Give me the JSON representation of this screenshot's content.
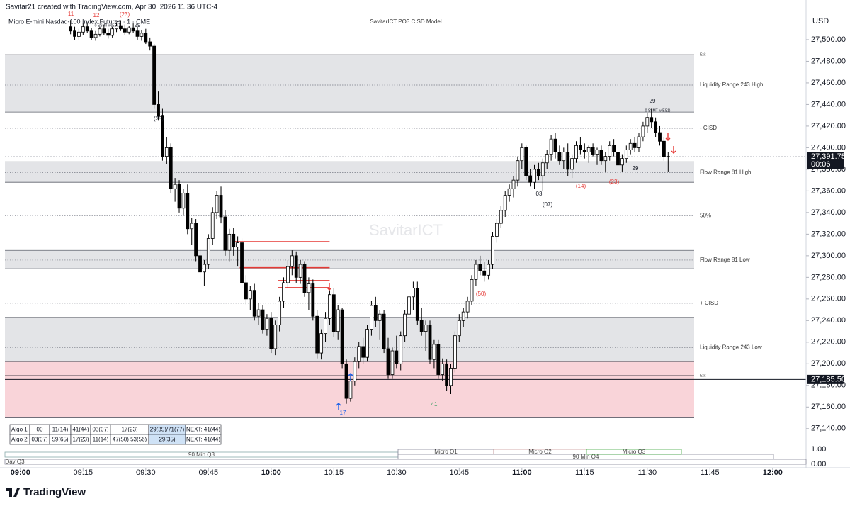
{
  "header": {
    "credit": "Savitar21 created with TradingView.com, Apr 30, 2026 11:36 UTC-4",
    "symbol": "Micro E-mini Nasdaq-100 Index Futures · 1 · CME",
    "indicator": "SavitarICT PO3 CISD Model",
    "currency": "USD"
  },
  "watermark": "SavitarICT",
  "footer": {
    "logo": "TradingView"
  },
  "chart_data": {
    "type": "candlestick",
    "up_color": "#ffffff",
    "down_color": "#000000",
    "xlim": [
      -3.7,
      188
    ],
    "ylim": [
      27133.3,
      27536.7
    ],
    "xticks": [
      {
        "value": 0,
        "label": "09:00"
      },
      {
        "value": 15,
        "label": "09:15"
      },
      {
        "value": 30,
        "label": "09:30"
      },
      {
        "value": 45,
        "label": "09:45"
      },
      {
        "value": 60,
        "label": "10:00"
      },
      {
        "value": 75,
        "label": "10:15"
      },
      {
        "value": 90,
        "label": "10:30"
      },
      {
        "value": 105,
        "label": "10:45"
      },
      {
        "value": 120,
        "label": "11:00"
      },
      {
        "value": 135,
        "label": "11:15"
      },
      {
        "value": 150,
        "label": "11:30"
      },
      {
        "value": 165,
        "label": "11:45"
      },
      {
        "value": 180,
        "label": "12:00"
      }
    ],
    "yticks": [
      {
        "value": 27140,
        "label": "27,140.00"
      },
      {
        "value": 27160,
        "label": "27,160.00"
      },
      {
        "value": 27180,
        "label": "27,180.00"
      },
      {
        "value": 27200,
        "label": "27,200.00"
      },
      {
        "value": 27220,
        "label": "27,220.00"
      },
      {
        "value": 27240,
        "label": "27,240.00"
      },
      {
        "value": 27260,
        "label": "27,260.00"
      },
      {
        "value": 27280,
        "label": "27,280.00"
      },
      {
        "value": 27300,
        "label": "27,300.00"
      },
      {
        "value": 27320,
        "label": "27,320.00"
      },
      {
        "value": 27340,
        "label": "27,340.00"
      },
      {
        "value": 27360,
        "label": "27,360.00"
      },
      {
        "value": 27380,
        "label": "27,380.00"
      },
      {
        "value": 27400,
        "label": "27,400.00"
      },
      {
        "value": 27420,
        "label": "27,420.00"
      },
      {
        "value": 27440,
        "label": "27,440.00"
      },
      {
        "value": 27460,
        "label": "27,460.00"
      },
      {
        "value": 27480,
        "label": "27,480.00"
      },
      {
        "value": 27500,
        "label": "27,500.00"
      }
    ],
    "x": [
      12,
      13,
      14,
      15,
      16,
      17,
      18,
      19,
      20,
      21,
      22,
      23,
      24,
      25,
      26,
      27,
      28,
      29,
      30,
      31,
      32,
      33,
      34,
      35,
      36,
      37,
      38,
      39,
      40,
      41,
      42,
      43,
      44,
      45,
      46,
      47,
      48,
      49,
      50,
      51,
      52,
      53,
      54,
      55,
      56,
      57,
      58,
      59,
      60,
      61,
      62,
      63,
      64,
      65,
      66,
      67,
      68,
      69,
      70,
      71,
      72,
      73,
      74,
      75,
      76,
      77,
      78,
      79,
      80,
      81,
      82,
      83,
      84,
      85,
      86,
      87,
      88,
      89,
      90,
      91,
      92,
      93,
      94,
      95,
      96,
      97,
      98,
      99,
      100,
      101,
      102,
      103,
      104,
      105,
      106,
      107,
      108,
      109,
      110,
      111,
      112,
      113,
      114,
      115,
      116,
      117,
      118,
      119,
      120,
      121,
      122,
      123,
      124,
      125,
      126,
      127,
      128,
      129,
      130,
      131,
      132,
      133,
      134,
      135,
      136,
      137,
      138,
      139,
      140,
      141,
      142,
      143,
      144,
      145,
      146,
      147,
      148,
      149,
      150,
      151,
      152,
      153,
      154,
      155
    ],
    "candles": [
      [
        27512,
        27518,
        27505,
        27508
      ],
      [
        27508,
        27512,
        27500,
        27503
      ],
      [
        27503,
        27510,
        27500,
        27507
      ],
      [
        27507,
        27515,
        27504,
        27512
      ],
      [
        27512,
        27516,
        27506,
        27508
      ],
      [
        27508,
        27511,
        27500,
        27502
      ],
      [
        27502,
        27508,
        27499,
        27505
      ],
      [
        27505,
        27512,
        27503,
        27510
      ],
      [
        27510,
        27514,
        27504,
        27506
      ],
      [
        27506,
        27510,
        27501,
        27504
      ],
      [
        27504,
        27512,
        27502,
        27510
      ],
      [
        27510,
        27516,
        27507,
        27513
      ],
      [
        27513,
        27518,
        27508,
        27510
      ],
      [
        27510,
        27514,
        27504,
        27507
      ],
      [
        27507,
        27513,
        27505,
        27511
      ],
      [
        27511,
        27515,
        27506,
        27508
      ],
      [
        27508,
        27512,
        27500,
        27503
      ],
      [
        27503,
        27509,
        27499,
        27506
      ],
      [
        27506,
        27510,
        27496,
        27498
      ],
      [
        27498,
        27502,
        27490,
        27494
      ],
      [
        27494,
        27496,
        27436,
        27440
      ],
      [
        27440,
        27452,
        27425,
        27430
      ],
      [
        27430,
        27436,
        27388,
        27392
      ],
      [
        27392,
        27410,
        27385,
        27400
      ],
      [
        27400,
        27404,
        27358,
        27362
      ],
      [
        27362,
        27372,
        27350,
        27366
      ],
      [
        27366,
        27370,
        27340,
        27344
      ],
      [
        27344,
        27362,
        27338,
        27358
      ],
      [
        27358,
        27366,
        27320,
        27325
      ],
      [
        27325,
        27335,
        27310,
        27330
      ],
      [
        27330,
        27334,
        27295,
        27300
      ],
      [
        27300,
        27306,
        27278,
        27285
      ],
      [
        27285,
        27296,
        27272,
        27292
      ],
      [
        27292,
        27320,
        27288,
        27316
      ],
      [
        27316,
        27345,
        27310,
        27340
      ],
      [
        27340,
        27360,
        27334,
        27356
      ],
      [
        27356,
        27364,
        27330,
        27336
      ],
      [
        27336,
        27342,
        27300,
        27305
      ],
      [
        27305,
        27325,
        27295,
        27320
      ],
      [
        27320,
        27326,
        27300,
        27308
      ],
      [
        27308,
        27318,
        27290,
        27312
      ],
      [
        27312,
        27316,
        27270,
        27275
      ],
      [
        27275,
        27282,
        27255,
        27260
      ],
      [
        27260,
        27272,
        27250,
        27268
      ],
      [
        27268,
        27274,
        27240,
        27244
      ],
      [
        27244,
        27256,
        27236,
        27250
      ],
      [
        27250,
        27254,
        27228,
        27232
      ],
      [
        27232,
        27246,
        27226,
        27242
      ],
      [
        27242,
        27248,
        27210,
        27214
      ],
      [
        27214,
        27240,
        27208,
        27236
      ],
      [
        27236,
        27262,
        27230,
        27258
      ],
      [
        27258,
        27280,
        27252,
        27275
      ],
      [
        27275,
        27296,
        27270,
        27290
      ],
      [
        27290,
        27305,
        27282,
        27300
      ],
      [
        27300,
        27304,
        27275,
        27280
      ],
      [
        27280,
        27296,
        27274,
        27292
      ],
      [
        27292,
        27295,
        27262,
        27266
      ],
      [
        27266,
        27280,
        27250,
        27274
      ],
      [
        27274,
        27278,
        27240,
        27244
      ],
      [
        27244,
        27250,
        27205,
        27210
      ],
      [
        27210,
        27232,
        27204,
        27228
      ],
      [
        27228,
        27248,
        27220,
        27242
      ],
      [
        27242,
        27268,
        27236,
        27264
      ],
      [
        27264,
        27270,
        27225,
        27230
      ],
      [
        27230,
        27254,
        27222,
        27250
      ],
      [
        27250,
        27252,
        27196,
        27200
      ],
      [
        27200,
        27204,
        27163,
        27168
      ],
      [
        27168,
        27188,
        27165,
        27184
      ],
      [
        27184,
        27206,
        27180,
        27202
      ],
      [
        27202,
        27220,
        27196,
        27216
      ],
      [
        27216,
        27224,
        27200,
        27206
      ],
      [
        27206,
        27236,
        27202,
        27232
      ],
      [
        27232,
        27258,
        27226,
        27254
      ],
      [
        27254,
        27262,
        27234,
        27240
      ],
      [
        27240,
        27250,
        27222,
        27246
      ],
      [
        27246,
        27250,
        27210,
        27214
      ],
      [
        27214,
        27224,
        27186,
        27190
      ],
      [
        27190,
        27215,
        27186,
        27212
      ],
      [
        27212,
        27226,
        27196,
        27200
      ],
      [
        27200,
        27230,
        27194,
        27226
      ],
      [
        27226,
        27250,
        27220,
        27246
      ],
      [
        27246,
        27268,
        27240,
        27262
      ],
      [
        27262,
        27276,
        27250,
        27270
      ],
      [
        27270,
        27276,
        27236,
        27240
      ],
      [
        27240,
        27252,
        27226,
        27230
      ],
      [
        27230,
        27240,
        27212,
        27236
      ],
      [
        27236,
        27240,
        27200,
        27204
      ],
      [
        27204,
        27222,
        27196,
        27218
      ],
      [
        27218,
        27222,
        27186,
        27190
      ],
      [
        27190,
        27205,
        27184,
        27200
      ],
      [
        27200,
        27204,
        27175,
        27180
      ],
      [
        27180,
        27200,
        27172,
        27196
      ],
      [
        27196,
        27230,
        27192,
        27226
      ],
      [
        27226,
        27246,
        27220,
        27240
      ],
      [
        27240,
        27252,
        27234,
        27248
      ],
      [
        27248,
        27262,
        27242,
        27258
      ],
      [
        27258,
        27282,
        27254,
        27278
      ],
      [
        27278,
        27296,
        27272,
        27292
      ],
      [
        27292,
        27300,
        27282,
        27286
      ],
      [
        27286,
        27294,
        27276,
        27282
      ],
      [
        27282,
        27296,
        27278,
        27292
      ],
      [
        27292,
        27322,
        27288,
        27318
      ],
      [
        27318,
        27334,
        27312,
        27330
      ],
      [
        27330,
        27346,
        27326,
        27342
      ],
      [
        27342,
        27360,
        27336,
        27356
      ],
      [
        27356,
        27366,
        27350,
        27362
      ],
      [
        27362,
        27374,
        27354,
        27370
      ],
      [
        27370,
        27392,
        27364,
        27388
      ],
      [
        27388,
        27404,
        27380,
        27400
      ],
      [
        27400,
        27402,
        27370,
        27374
      ],
      [
        27374,
        27380,
        27364,
        27368
      ],
      [
        27368,
        27384,
        27362,
        27380
      ],
      [
        27380,
        27386,
        27370,
        27374
      ],
      [
        27374,
        27390,
        27360,
        27386
      ],
      [
        27386,
        27398,
        27380,
        27394
      ],
      [
        27394,
        27412,
        27388,
        27408
      ],
      [
        27408,
        27414,
        27390,
        27396
      ],
      [
        27396,
        27402,
        27384,
        27388
      ],
      [
        27388,
        27400,
        27380,
        27396
      ],
      [
        27396,
        27404,
        27374,
        27380
      ],
      [
        27380,
        27394,
        27372,
        27390
      ],
      [
        27390,
        27406,
        27386,
        27402
      ],
      [
        27402,
        27410,
        27394,
        27398
      ],
      [
        27398,
        27404,
        27390,
        27396
      ],
      [
        27396,
        27402,
        27386,
        27400
      ],
      [
        27400,
        27404,
        27392,
        27394
      ],
      [
        27394,
        27400,
        27384,
        27398
      ],
      [
        27398,
        27402,
        27384,
        27388
      ],
      [
        27388,
        27396,
        27378,
        27392
      ],
      [
        27392,
        27406,
        27388,
        27402
      ],
      [
        27402,
        27408,
        27392,
        27396
      ],
      [
        27396,
        27402,
        27380,
        27384
      ],
      [
        27384,
        27394,
        27378,
        27390
      ],
      [
        27390,
        27402,
        27386,
        27398
      ],
      [
        27398,
        27408,
        27394,
        27404
      ],
      [
        27404,
        27410,
        27396,
        27400
      ],
      [
        27400,
        27414,
        27396,
        27410
      ],
      [
        27410,
        27424,
        27406,
        27420
      ],
      [
        27420,
        27432,
        27414,
        27428
      ],
      [
        27428,
        27436,
        27418,
        27424
      ],
      [
        27424,
        27428,
        27410,
        27414
      ],
      [
        27414,
        27420,
        27402,
        27406
      ],
      [
        27406,
        27410,
        27388,
        27392
      ],
      [
        27392,
        27396,
        27378,
        27391.75
      ]
    ],
    "zones": [
      {
        "low": 27433,
        "high": 27486,
        "color": "#e3e4e7"
      },
      {
        "low": 27368,
        "high": 27387,
        "color": "#e3e4e7"
      },
      {
        "low": 27288,
        "high": 27305,
        "color": "#e3e4e7"
      },
      {
        "low": 27202,
        "high": 27243,
        "color": "#e3e4e7"
      },
      {
        "low": 27150,
        "high": 27202,
        "color": "#f9d4d9"
      }
    ],
    "levels": [
      {
        "label": "Exit",
        "value": 27486,
        "style": "solid"
      },
      {
        "label": "Liquidity Range 243 High",
        "value": 27458,
        "style": "dotted"
      },
      {
        "label": "- CISD",
        "value": 27418,
        "style": "dotted"
      },
      {
        "label": "Flow Range 81 High",
        "value": 27377,
        "style": "dotted"
      },
      {
        "label": "50%",
        "value": 27337,
        "style": "dotted"
      },
      {
        "label": "Flow Range 81 Low",
        "value": 27296,
        "style": "dotted"
      },
      {
        "label": "+ CISD",
        "value": 27256,
        "style": "dotted"
      },
      {
        "label": "Liquidity Range 243 Low",
        "value": 27215,
        "style": "dotted"
      },
      {
        "label": "Exit",
        "value": 27189,
        "style": "solid"
      }
    ],
    "red_lines": [
      {
        "value": 27313,
        "x": [
          51,
          74
        ]
      },
      {
        "value": 27289,
        "x": [
          52.5,
          74
        ]
      },
      {
        "value": 27277,
        "x": [
          61.7,
          74
        ]
      },
      {
        "value": 27270.5,
        "x": [
          61.7,
          74
        ]
      }
    ],
    "red_line_color": "#e53935",
    "price_tags": [
      {
        "value": 27391.75,
        "label": "27,391.75",
        "countdown": "00:06"
      },
      {
        "value": 27185.5,
        "label": "27,185.50"
      }
    ],
    "annotations": [
      {
        "text": "11",
        "color": "#e53935"
      },
      {
        "text": "12",
        "color": "#e53935"
      },
      {
        "text": "(23)",
        "color": "#e53935"
      },
      {
        "text": "29",
        "color": "#131722"
      },
      {
        "text": "- 0 SSMT w(ES1)",
        "color": "#131722"
      },
      {
        "text": "(35)",
        "color": "#131722"
      },
      {
        "text": "29",
        "color": "#131722"
      },
      {
        "text": "- 0 SSMT w(ES1)",
        "color": "#131722"
      },
      {
        "text": "03",
        "color": "#131722"
      },
      {
        "text": "(07)",
        "color": "#131722"
      },
      {
        "text": "(14)",
        "color": "#e53935"
      },
      {
        "text": "(23)",
        "color": "#e53935"
      },
      {
        "text": "29",
        "color": "#131722"
      },
      {
        "text": "(50)",
        "color": "#e53935"
      },
      {
        "text": "17",
        "color": "#1e63e9"
      },
      {
        "text": "41",
        "color": "#2e9e5b"
      }
    ]
  },
  "table": {
    "rows": [
      [
        "Algo 1",
        "00",
        "11(14)",
        "41(44)",
        "03(07)",
        "17(23)",
        "29(35)/71(77)",
        "NEXT: 41(44)"
      ],
      [
        "Algo 2",
        "03(07)",
        "59(65)",
        "17(23)",
        "11(14)",
        "47(50) 53(56)",
        "29(35)",
        "NEXT: 41(44)"
      ]
    ],
    "highlight_color": "#cfe2f6"
  },
  "sessions": {
    "items": [
      "90 Min Q3",
      "Micro Q1",
      "Micro Q2",
      "90 Min Q4",
      "Micro Q3",
      "Day Q3"
    ],
    "axis": [
      "1.00",
      "0.00"
    ]
  }
}
